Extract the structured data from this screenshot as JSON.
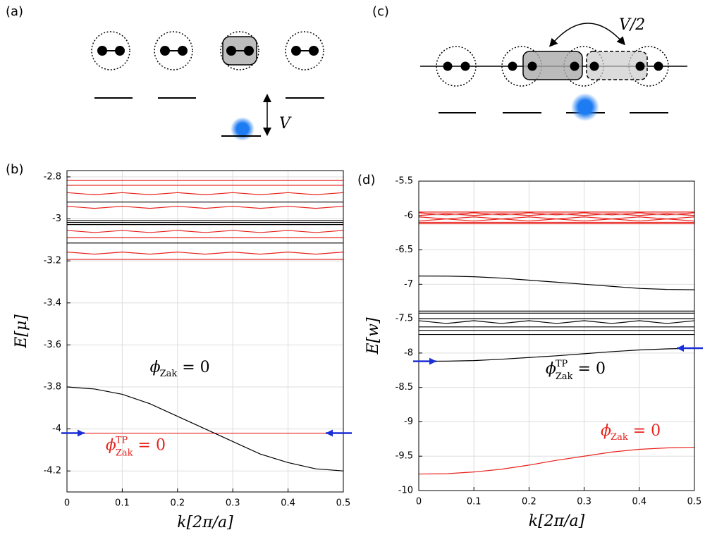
{
  "diagrams": [
    {
      "panel": "(a)",
      "label": "V"
    },
    {
      "panel": "(c)",
      "label": "V/2"
    }
  ],
  "chart_data": [
    {
      "type": "line",
      "panel": "(b)",
      "xlabel": "k[2π/a]",
      "ylabel": "E[μ]",
      "x": [
        0,
        0.05,
        0.1,
        0.15,
        0.2,
        0.25,
        0.3,
        0.35,
        0.4,
        0.45,
        0.5
      ],
      "xlim": [
        0,
        0.5
      ],
      "xticks": [
        0,
        0.1,
        0.2,
        0.3,
        0.4,
        0.5
      ],
      "ylim": [
        -4.3,
        -2.77
      ],
      "yticks": [
        -2.8,
        -3,
        -3.2,
        -3.4,
        -3.6,
        -3.8,
        -4,
        -4.2
      ],
      "grid": true,
      "series": [
        {
          "color": "#e8221c",
          "values": [
            -2.817,
            -2.817,
            -2.817,
            -2.817,
            -2.817,
            -2.817,
            -2.817,
            -2.817,
            -2.817,
            -2.817,
            -2.817
          ]
        },
        {
          "color": "#e8221c",
          "values": [
            -2.84,
            -2.84,
            -2.84,
            -2.84,
            -2.84,
            -2.84,
            -2.84,
            -2.84,
            -2.84,
            -2.84,
            -2.84
          ]
        },
        {
          "color": "#e8221c",
          "values": [
            -2.875,
            -2.885,
            -2.875,
            -2.885,
            -2.875,
            -2.885,
            -2.875,
            -2.885,
            -2.875,
            -2.885,
            -2.875
          ]
        },
        {
          "color": "#000000",
          "values": [
            -2.92,
            -2.92,
            -2.92,
            -2.92,
            -2.92,
            -2.92,
            -2.92,
            -2.92,
            -2.92,
            -2.92,
            -2.92
          ]
        },
        {
          "color": "#e8221c",
          "values": [
            -2.94,
            -2.95,
            -2.94,
            -2.95,
            -2.94,
            -2.95,
            -2.94,
            -2.95,
            -2.94,
            -2.95,
            -2.94
          ]
        },
        {
          "color": "#000000",
          "values": [
            -3.008,
            -3.008,
            -3.008,
            -3.008,
            -3.008,
            -3.008,
            -3.008,
            -3.008,
            -3.008,
            -3.008,
            -3.008
          ]
        },
        {
          "color": "#000000",
          "values": [
            -3.017,
            -3.017,
            -3.017,
            -3.017,
            -3.017,
            -3.017,
            -3.017,
            -3.017,
            -3.017,
            -3.017,
            -3.017
          ]
        },
        {
          "color": "#000000",
          "values": [
            -3.027,
            -3.027,
            -3.027,
            -3.027,
            -3.027,
            -3.027,
            -3.027,
            -3.027,
            -3.027,
            -3.027,
            -3.027
          ]
        },
        {
          "color": "#e8221c",
          "values": [
            -3.055,
            -3.065,
            -3.055,
            -3.065,
            -3.055,
            -3.065,
            -3.055,
            -3.065,
            -3.055,
            -3.065,
            -3.055
          ]
        },
        {
          "color": "#e8221c",
          "values": [
            -3.09,
            -3.09,
            -3.09,
            -3.09,
            -3.09,
            -3.09,
            -3.09,
            -3.09,
            -3.09,
            -3.09,
            -3.09
          ]
        },
        {
          "color": "#000000",
          "values": [
            -3.115,
            -3.115,
            -3.115,
            -3.115,
            -3.115,
            -3.115,
            -3.115,
            -3.115,
            -3.115,
            -3.115,
            -3.115
          ]
        },
        {
          "color": "#e8221c",
          "values": [
            -3.158,
            -3.168,
            -3.158,
            -3.168,
            -3.158,
            -3.168,
            -3.158,
            -3.168,
            -3.158,
            -3.168,
            -3.158
          ]
        },
        {
          "color": "#e8221c",
          "values": [
            -3.193,
            -3.193,
            -3.193,
            -3.193,
            -3.193,
            -3.193,
            -3.193,
            -3.193,
            -3.193,
            -3.193,
            -3.193
          ]
        },
        {
          "color": "#e8221c",
          "values": [
            -4.02,
            -4.02,
            -4.02,
            -4.02,
            -4.02,
            -4.02,
            -4.02,
            -4.02,
            -4.02,
            -4.02,
            -4.02
          ]
        },
        {
          "color": "#000000",
          "values": [
            -3.8,
            -3.81,
            -3.835,
            -3.88,
            -3.94,
            -4.0,
            -4.06,
            -4.12,
            -4.16,
            -4.19,
            -4.2
          ]
        }
      ],
      "annotations": [
        {
          "symbol": "ϕ",
          "sub": "Zak",
          "rhs": " = 0",
          "color": "#000000"
        },
        {
          "symbol": "ϕ",
          "sub": "Zak",
          "sup": "TP",
          "rhs": " = 0",
          "color": "#e8221c"
        }
      ]
    },
    {
      "type": "line",
      "panel": "(d)",
      "xlabel": "k[2π/a]",
      "ylabel": "E[w]",
      "x": [
        0,
        0.05,
        0.1,
        0.15,
        0.2,
        0.25,
        0.3,
        0.35,
        0.4,
        0.45,
        0.5
      ],
      "xlim": [
        0,
        0.5
      ],
      "xticks": [
        0,
        0.1,
        0.2,
        0.3,
        0.4,
        0.5
      ],
      "ylim": [
        -10,
        -5.5
      ],
      "yticks": [
        -5.5,
        -6,
        -6.5,
        -7,
        -7.5,
        -8,
        -8.5,
        -9,
        -9.5,
        -10
      ],
      "grid": true,
      "series": [
        {
          "color": "#e8221c",
          "values": [
            -5.95,
            -5.95,
            -5.95,
            -5.95,
            -5.95,
            -5.95,
            -5.95,
            -5.95,
            -5.95,
            -5.95,
            -5.95
          ]
        },
        {
          "color": "#e8221c",
          "values": [
            -5.96,
            -5.99,
            -5.96,
            -5.99,
            -5.96,
            -5.99,
            -5.96,
            -5.99,
            -5.96,
            -5.99,
            -5.96
          ]
        },
        {
          "color": "#e8221c",
          "values": [
            -6.0,
            -5.97,
            -6.0,
            -5.97,
            -6.0,
            -5.97,
            -6.0,
            -5.97,
            -6.0,
            -5.97,
            -6.0
          ]
        },
        {
          "color": "#e8221c",
          "values": [
            -6.02,
            -6.05,
            -6.02,
            -6.05,
            -6.02,
            -6.05,
            -6.02,
            -6.05,
            -6.02,
            -6.05,
            -6.02
          ]
        },
        {
          "color": "#e8221c",
          "values": [
            -6.08,
            -6.05,
            -6.08,
            -6.05,
            -6.08,
            -6.05,
            -6.08,
            -6.05,
            -6.08,
            -6.05,
            -6.08
          ]
        },
        {
          "color": "#e8221c",
          "values": [
            -6.1,
            -6.1,
            -6.1,
            -6.1,
            -6.1,
            -6.1,
            -6.1,
            -6.1,
            -6.1,
            -6.1,
            -6.1
          ]
        },
        {
          "color": "#e8221c",
          "values": [
            -6.12,
            -6.12,
            -6.12,
            -6.12,
            -6.12,
            -6.12,
            -6.12,
            -6.12,
            -6.12,
            -6.12,
            -6.12
          ]
        },
        {
          "color": "#000000",
          "values": [
            -6.88,
            -6.881,
            -6.89,
            -6.91,
            -6.94,
            -6.97,
            -7.0,
            -7.03,
            -7.06,
            -7.075,
            -7.08
          ]
        },
        {
          "color": "#000000",
          "values": [
            -7.39,
            -7.39,
            -7.39,
            -7.39,
            -7.39,
            -7.39,
            -7.39,
            -7.39,
            -7.39,
            -7.39,
            -7.39
          ]
        },
        {
          "color": "#000000",
          "values": [
            -7.42,
            -7.42,
            -7.42,
            -7.42,
            -7.42,
            -7.42,
            -7.42,
            -7.42,
            -7.42,
            -7.42,
            -7.42
          ]
        },
        {
          "color": "#000000",
          "values": [
            -7.5,
            -7.5,
            -7.5,
            -7.5,
            -7.5,
            -7.5,
            -7.5,
            -7.5,
            -7.5,
            -7.5,
            -7.5
          ]
        },
        {
          "color": "#000000",
          "values": [
            -7.53,
            -7.57,
            -7.53,
            -7.57,
            -7.53,
            -7.57,
            -7.53,
            -7.57,
            -7.53,
            -7.57,
            -7.53
          ]
        },
        {
          "color": "#000000",
          "values": [
            -7.62,
            -7.62,
            -7.62,
            -7.62,
            -7.62,
            -7.62,
            -7.62,
            -7.62,
            -7.62,
            -7.62,
            -7.62
          ]
        },
        {
          "color": "#000000",
          "values": [
            -7.67,
            -7.67,
            -7.67,
            -7.67,
            -7.67,
            -7.67,
            -7.67,
            -7.67,
            -7.67,
            -7.67,
            -7.67
          ]
        },
        {
          "color": "#000000",
          "values": [
            -7.73,
            -7.73,
            -7.73,
            -7.73,
            -7.73,
            -7.73,
            -7.73,
            -7.73,
            -7.73,
            -7.73,
            -7.73
          ]
        },
        {
          "color": "#000000",
          "values": [
            -8.12,
            -8.118,
            -8.11,
            -8.09,
            -8.065,
            -8.04,
            -8.01,
            -7.98,
            -7.955,
            -7.94,
            -7.93
          ]
        },
        {
          "color": "#e8221c",
          "values": [
            -9.76,
            -9.755,
            -9.73,
            -9.69,
            -9.63,
            -9.56,
            -9.5,
            -9.44,
            -9.4,
            -9.38,
            -9.37
          ]
        }
      ],
      "annotations": [
        {
          "symbol": "ϕ",
          "sub": "Zak",
          "sup": "TP",
          "rhs": " = 0",
          "color": "#000000"
        },
        {
          "symbol": "ϕ",
          "sub": "Zak",
          "rhs": " = 0",
          "color": "#e8221c"
        }
      ]
    }
  ]
}
